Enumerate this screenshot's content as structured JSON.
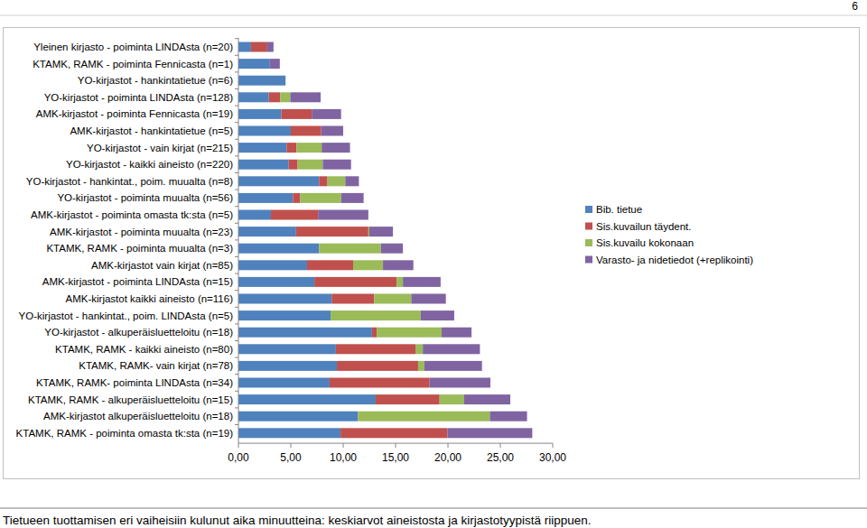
{
  "chart_data": {
    "type": "bar",
    "orientation": "horizontal",
    "stacked": true,
    "legend": "right",
    "title": "Tietueen tuottamisen eri vaiheisiin kulunut aika minuutteina: keskiarvot aineistosta ja kirjastotyypistä riippuen.",
    "annotations": [
      "6"
    ],
    "categories": [
      "Yleinen kirjasto - poiminta LINDAsta (n=20)",
      "KTAMK, RAMK - poiminta Fennicasta (n=1)",
      "YO-kirjastot - hankintatietue (n=6)",
      "YO-kirjastot - poiminta LINDAsta (n=128)",
      "AMK-kirjastot - poiminta Fennicasta (n=19)",
      "AMK-kirjastot - hankintatietue (n=5)",
      "YO-kirjastot - vain kirjat (n=215)",
      "YO-kirjastot - kaikki aineisto (n=220)",
      "YO-kirjastot - hankintat., poim. muualta (n=8)",
      "YO-kirjastot - poiminta muualta (n=56)",
      "AMK-kirjastot - poiminta omasta tk:sta (n=5)",
      "AMK-kirjastot - poiminta muualta (n=23)",
      "KTAMK, RAMK - poiminta muualta (n=3)",
      "AMK-kirjastot vain kirjat (n=85)",
      "AMK-kirjastot - poiminta LINDAsta (n=15)",
      "AMK-kirjastot kaikki aineisto (n=116)",
      "YO-kirjastot - hankintat., poim. LINDAsta (n=5)",
      "YO-kirjastot - alkuperäisluetteloitu (n=18)",
      "KTAMK, RAMK - kaikki aineisto (n=80)",
      "KTAMK, RAMK- vain kirjat (n=78)",
      "KTAMK, RAMK- poiminta LINDAsta (n=34)",
      "KTAMK, RAMK - alkuperäisluetteloitu (n=15)",
      "AMK-kirjastot alkuperäisluetteloitu (n=18)",
      "KTAMK, RAMK - poiminta omasta tk:sta (n=19)"
    ],
    "series": [
      {
        "name": "Bib. tietue",
        "color": "#4f81bd",
        "values": [
          1.2,
          3.0,
          4.5,
          2.9,
          4.1,
          5.0,
          4.6,
          4.8,
          7.7,
          5.2,
          3.1,
          5.5,
          7.7,
          6.55,
          7.25,
          8.9,
          8.8,
          12.75,
          9.3,
          9.4,
          8.7,
          13.1,
          11.4,
          9.75
        ]
      },
      {
        "name": "Sis.kuvailun täydent.",
        "color": "#c0504d",
        "values": [
          1.55,
          0,
          0,
          1.1,
          2.9,
          2.9,
          0.95,
          0.85,
          0.8,
          0.7,
          4.5,
          6.9,
          0,
          4.4,
          7.85,
          4.05,
          0,
          0.45,
          7.6,
          7.75,
          9.55,
          6.1,
          0,
          10.2
        ]
      },
      {
        "name": "Sis.kuvailu kokonaan",
        "color": "#9bbb59",
        "values": [
          0,
          0,
          0,
          0.95,
          0,
          0,
          2.4,
          2.4,
          1.7,
          3.9,
          0,
          0.1,
          5.9,
          2.85,
          0.6,
          3.55,
          8.6,
          6.2,
          0.7,
          0.6,
          0,
          2.35,
          12.6,
          0
        ]
      },
      {
        "name": "Varasto- ja nidetiedot (+replikointi)",
        "color": "#8064a2",
        "values": [
          0.6,
          0.95,
          0,
          2.9,
          2.8,
          2.1,
          2.7,
          2.7,
          1.3,
          2.15,
          4.8,
          2.25,
          2.1,
          2.9,
          3.6,
          3.3,
          3.2,
          2.85,
          5.45,
          5.5,
          5.8,
          4.4,
          3.55,
          8.1
        ]
      }
    ],
    "xlim": [
      0,
      30
    ],
    "xticks": [
      {
        "value": 0,
        "label": "0,00"
      },
      {
        "value": 5,
        "label": "5,00"
      },
      {
        "value": 10,
        "label": "10,00"
      },
      {
        "value": 15,
        "label": "15,00"
      },
      {
        "value": 20,
        "label": "20,00"
      },
      {
        "value": 25,
        "label": "25,00"
      },
      {
        "value": 30,
        "label": "30,00"
      }
    ],
    "grid": false
  }
}
